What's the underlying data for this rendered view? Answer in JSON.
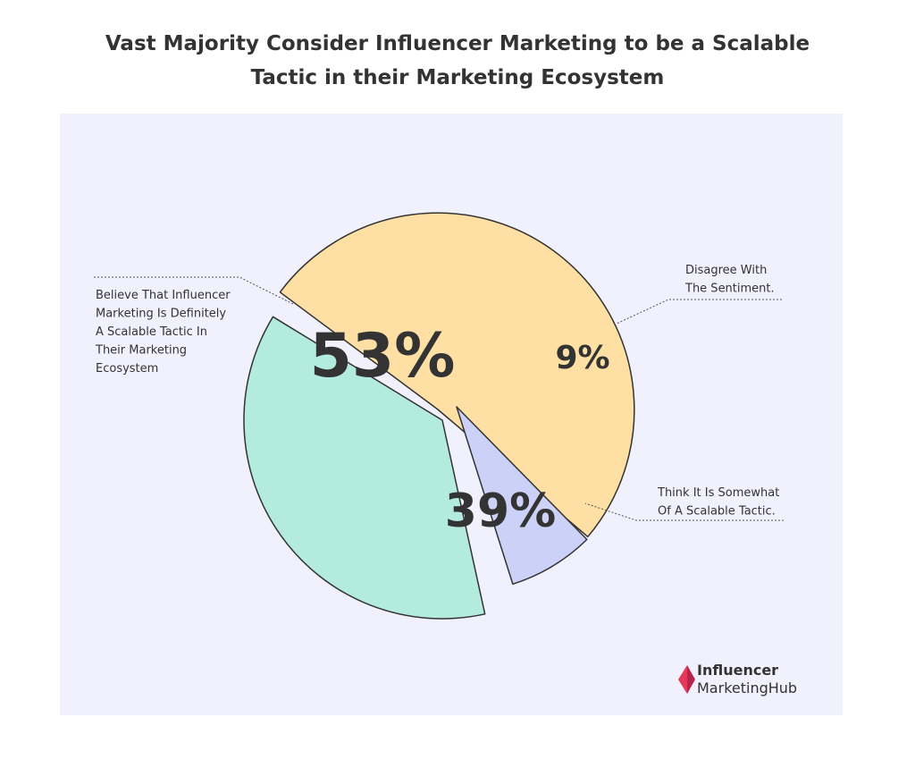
{
  "chart_data": {
    "type": "pie",
    "title": "Vast Majority Consider Influencer Marketing to be a Scalable Tactic in their Marketing Ecosystem",
    "title_lines": [
      "Vast Majority Consider Influencer Marketing to be a Scalable",
      "Tactic in their Marketing Ecosystem"
    ],
    "slices": [
      {
        "label": "Believe That Influencer Marketing Is Definitely A Scalable Tactic In Their Marketing Ecosystem",
        "label_lines": [
          "Believe That Influencer",
          "Marketing Is Definitely",
          "A Scalable Tactic In",
          "Their Marketing",
          "Ecosystem"
        ],
        "value": 53,
        "value_label": "53%",
        "color": "#fedfa4"
      },
      {
        "label": "Disagree With The Sentiment.",
        "label_lines": [
          "Disagree With",
          "The Sentiment."
        ],
        "value": 9,
        "value_label": "9%",
        "color": "#ccd1f8"
      },
      {
        "label": "Think It Is Somewhat Of A Scalable Tactic.",
        "label_lines": [
          "Think It Is Somewhat",
          "Of A Scalable Tactic."
        ],
        "value": 39,
        "value_label": "39%",
        "color": "#b3ecdf"
      }
    ],
    "background": "#f1f0fd"
  },
  "brand": {
    "line1": "Influencer",
    "line2": "MarketingHub",
    "accent": "#e8365d"
  }
}
